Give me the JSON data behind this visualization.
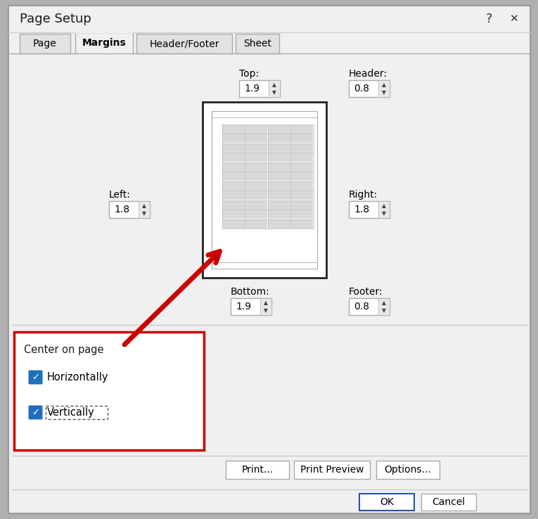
{
  "title": "Page Setup",
  "bg_color": "#f0f0f0",
  "tabs": [
    "Page",
    "Margins",
    "Header/Footer",
    "Sheet"
  ],
  "active_tab_idx": 1,
  "top_val": "1.9",
  "bottom_val": "1.9",
  "left_val": "1.8",
  "right_val": "1.8",
  "header_val": "0.8",
  "footer_val": "0.8",
  "center_on_page_label": "Center on page",
  "checkbox1_label": "Horizontally",
  "checkbox2_label": "Vertically",
  "btn_print": "Print...",
  "btn_preview": "Print Preview",
  "btn_options": "Options...",
  "btn_ok": "OK",
  "btn_cancel": "Cancel",
  "checkbox_color": "#1e6fbb",
  "highlight_box_color": "#cc0000",
  "arrow_color": "#cc0000",
  "outer_bg": "#b0b0b0",
  "tab_line_color": "#b8b8b8",
  "separator_color": "#cccccc",
  "spinbox_bg": "#f5f5f5",
  "cell_fill": "#d8d8d8",
  "cell_border": "#c0c0c0",
  "page_border": "#222222",
  "margin_line": "#aaaaaa",
  "dialog_border": "#909090"
}
